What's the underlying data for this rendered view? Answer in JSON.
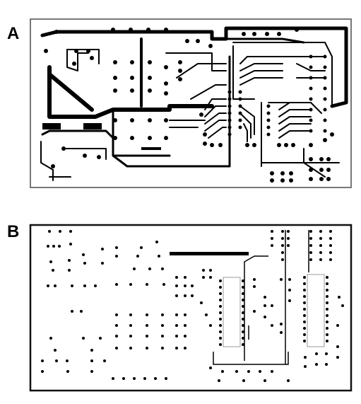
{
  "panels": [
    {
      "label": "A",
      "layer": "copper-traces"
    },
    {
      "label": "B",
      "layer": "drill-holes"
    }
  ],
  "colors": {
    "ink": "#000000",
    "frame_a": "#777777",
    "frame_b": "#111111",
    "ic_outline": "#999999"
  }
}
